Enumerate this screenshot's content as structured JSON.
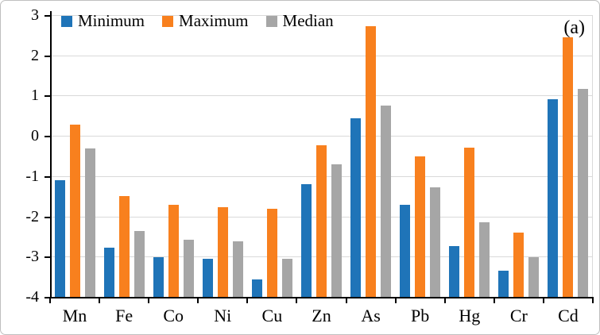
{
  "figure": {
    "panel_label": "(a)",
    "background": "#ffffff",
    "border_color": "#bfbfbf"
  },
  "chart_data": {
    "type": "bar",
    "title": "",
    "xlabel": "",
    "ylabel": "",
    "categories": [
      "Mn",
      "Fe",
      "Co",
      "Ni",
      "Cu",
      "Zn",
      "As",
      "Pb",
      "Hg",
      "Cr",
      "Cd"
    ],
    "series": [
      {
        "name": "Minimum",
        "color": "#1f74b8",
        "values": [
          -1.1,
          -2.78,
          -3.01,
          -3.06,
          -3.57,
          -1.2,
          0.43,
          -1.72,
          -2.73,
          -3.34,
          0.91
        ]
      },
      {
        "name": "Maximum",
        "color": "#f8801e",
        "values": [
          0.27,
          -1.49,
          -1.72,
          -1.78,
          -1.82,
          -0.23,
          2.72,
          -0.51,
          -0.3,
          -2.41,
          2.45
        ]
      },
      {
        "name": "Median",
        "color": "#a6a6a6",
        "values": [
          -0.32,
          -2.37,
          -2.58,
          -2.61,
          -3.06,
          -0.71,
          0.76,
          -1.28,
          -2.15,
          -3.01,
          1.16
        ]
      }
    ],
    "ylim": [
      -4,
      3
    ],
    "yticks": [
      3,
      2,
      1,
      0,
      -1,
      -2,
      -3,
      -4
    ],
    "bar_base": -4,
    "grid": true,
    "gridline_color": "#d9d9d9",
    "legend_position": "top-left-inside"
  }
}
